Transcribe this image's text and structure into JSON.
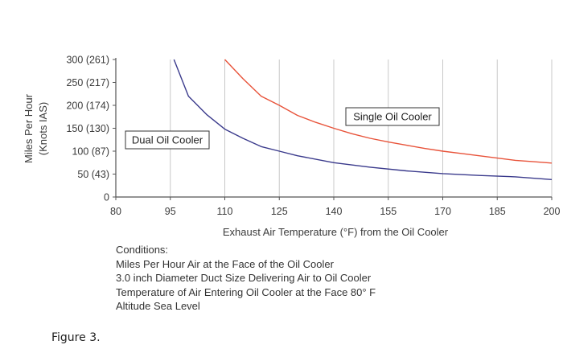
{
  "chart_data": {
    "type": "line",
    "xlabel": "Exhaust Air Temperature (°F) from the Oil Cooler",
    "ylabel_line1": "Miles Per Hour",
    "ylabel_line2": "(Knots IAS)",
    "xlim": [
      80,
      200
    ],
    "ylim": [
      0,
      300
    ],
    "x_ticks": [
      80,
      95,
      110,
      125,
      140,
      155,
      170,
      185,
      200
    ],
    "y_ticks": [
      {
        "value": 0,
        "label": "0"
      },
      {
        "value": 50,
        "label": "50 (43)"
      },
      {
        "value": 100,
        "label": "100 (87)"
      },
      {
        "value": 150,
        "label": "150 (130)"
      },
      {
        "value": 200,
        "label": "200 (174)"
      },
      {
        "value": 250,
        "label": "250 (217)"
      },
      {
        "value": 300,
        "label": "300 (261)"
      }
    ],
    "grid": "vertical",
    "series": [
      {
        "name": "Single Oil Cooler",
        "color": "#e8533a",
        "x": [
          110,
          115,
          120,
          125,
          130,
          135,
          140,
          145,
          150,
          155,
          160,
          165,
          170,
          175,
          180,
          185,
          190,
          195,
          200
        ],
        "y": [
          300,
          258,
          220,
          200,
          178,
          163,
          150,
          138,
          128,
          120,
          113,
          106,
          100,
          95,
          90,
          85,
          80,
          77,
          74
        ]
      },
      {
        "name": "Dual Oil Cooler",
        "color": "#3a3a8c",
        "x": [
          96,
          100,
          105,
          110,
          115,
          120,
          125,
          130,
          140,
          150,
          160,
          170,
          180,
          190,
          200
        ],
        "y": [
          300,
          220,
          180,
          148,
          128,
          110,
          100,
          90,
          75,
          65,
          57,
          51,
          47,
          44,
          38
        ]
      }
    ]
  },
  "conditions": [
    "Conditions:",
    "Miles Per Hour Air at the Face of the Oil Cooler",
    "3.0 inch Diameter Duct Size Delivering Air to Oil Cooler",
    "Temperature of Air Entering Oil Cooler at the Face 80° F",
    "Altitude Sea Level"
  ],
  "figure_caption": "Figure 3."
}
